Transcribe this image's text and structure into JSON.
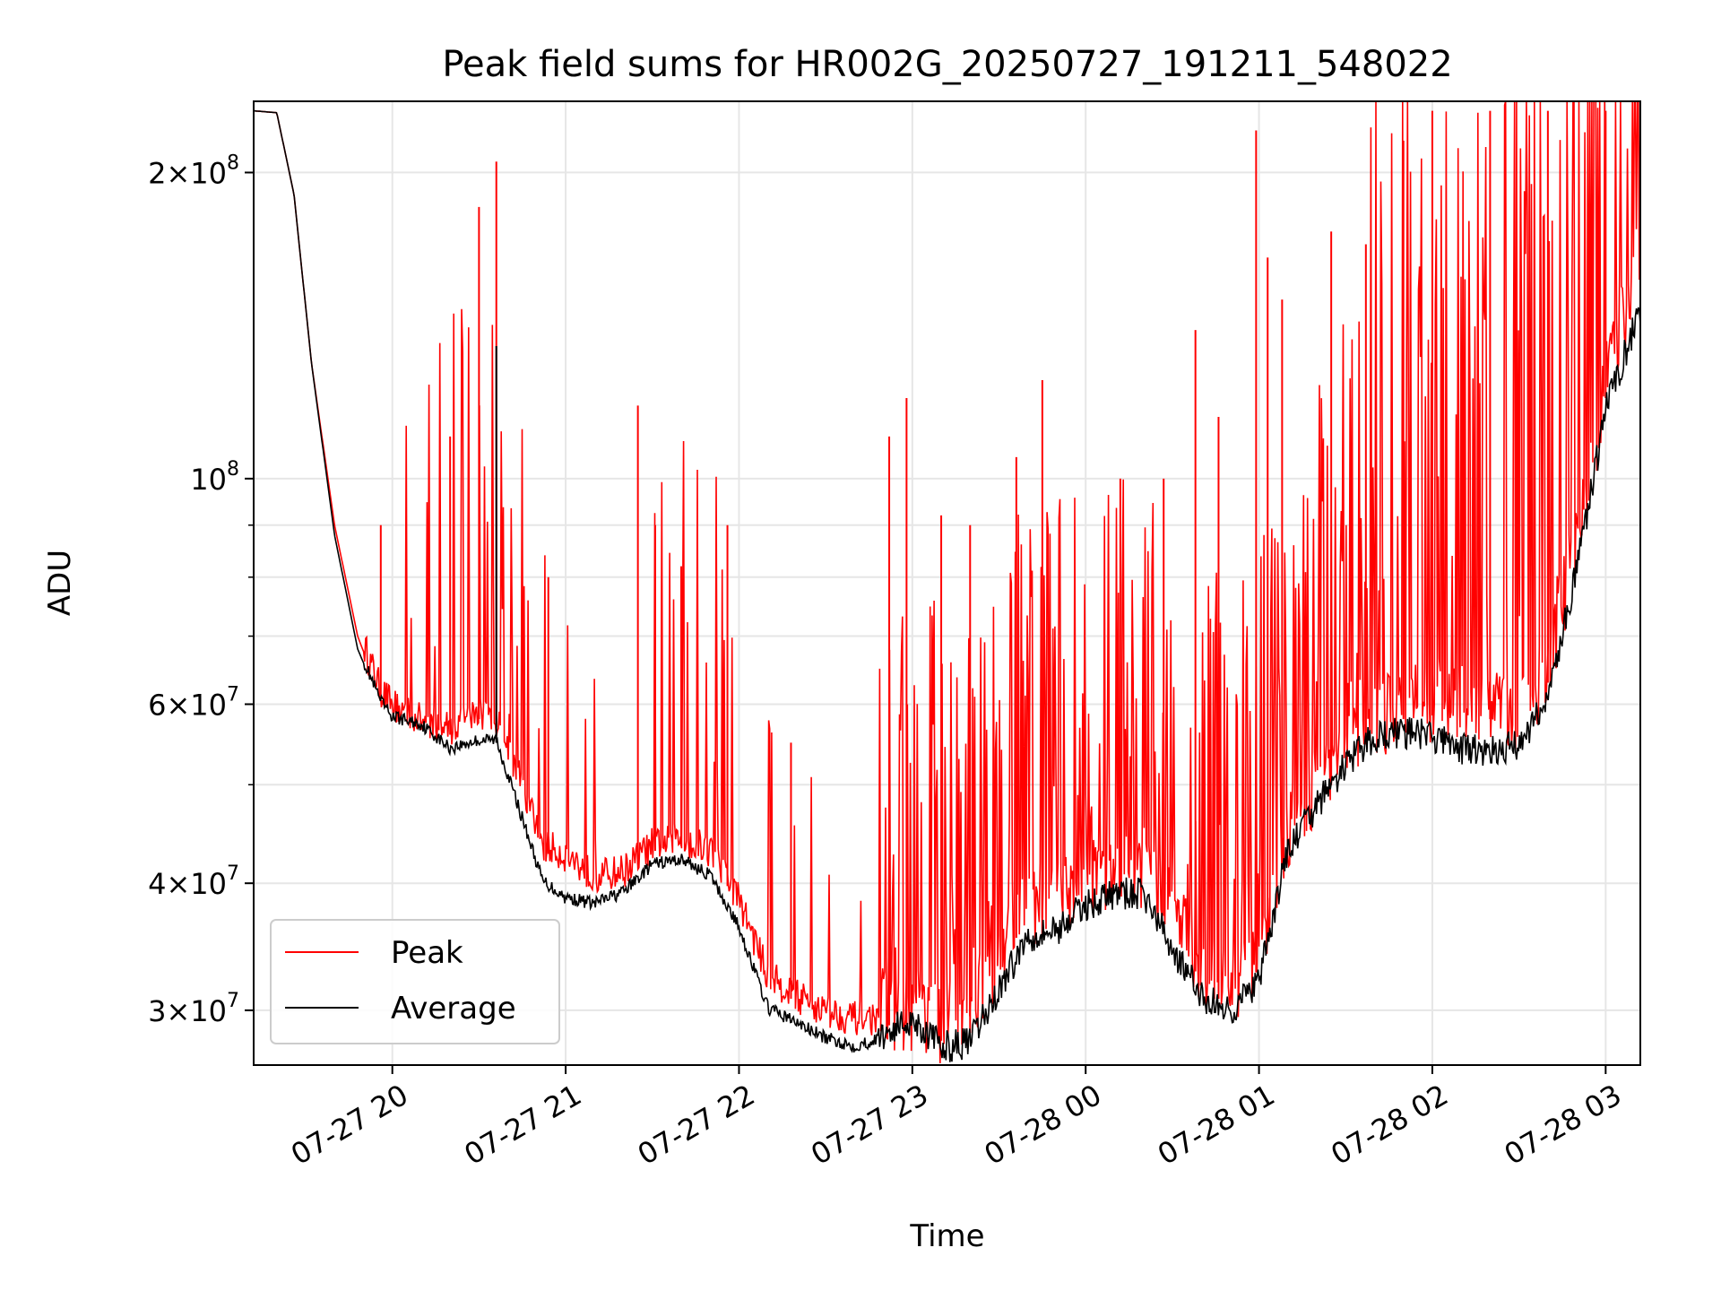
{
  "chart_data": {
    "type": "line",
    "title": "Peak field sums for HR002G_20250727_191211_548022",
    "xlabel": "Time",
    "ylabel": "ADU",
    "yscale": "log",
    "ylim": [
      26500000,
      235000000
    ],
    "xlim": [
      "07-27 19:12",
      "07-28 03:12"
    ],
    "grid": true,
    "legend_position": "lower-left",
    "x_ticks": [
      "07-27 20",
      "07-27 21",
      "07-27 22",
      "07-27 23",
      "07-28 00",
      "07-28 01",
      "07-28 02",
      "07-28 03"
    ],
    "y_ticks": [
      {
        "value": 30000000,
        "base": "3",
        "exp": "7"
      },
      {
        "value": 40000000,
        "base": "4",
        "exp": "7"
      },
      {
        "value": 60000000,
        "base": "6",
        "exp": "7"
      },
      {
        "value": 100000000,
        "base": "",
        "exp": "8"
      },
      {
        "value": 200000000,
        "base": "2",
        "exp": "8"
      }
    ],
    "series": [
      {
        "name": "Peak",
        "color": "#ff0000",
        "x": [
          "07-27 19:12",
          "07-27 19:20",
          "07-27 19:26",
          "07-27 19:32",
          "07-27 19:40",
          "07-27 19:48",
          "07-27 19:56",
          "07-27 20:00",
          "07-27 20:10",
          "07-27 20:20",
          "07-27 20:30",
          "07-27 20:36",
          "07-27 20:44",
          "07-27 20:52",
          "07-27 21:00",
          "07-27 21:10",
          "07-27 21:20",
          "07-27 21:30",
          "07-27 21:40",
          "07-27 21:50",
          "07-27 22:00",
          "07-27 22:10",
          "07-27 22:20",
          "07-27 22:30",
          "07-27 22:40",
          "07-27 22:50",
          "07-27 23:00",
          "07-27 23:10",
          "07-27 23:20",
          "07-27 23:30",
          "07-27 23:40",
          "07-27 23:50",
          "07-28 00:00",
          "07-28 00:10",
          "07-28 00:20",
          "07-28 00:30",
          "07-28 00:40",
          "07-28 00:50",
          "07-28 01:00",
          "07-28 01:10",
          "07-28 01:20",
          "07-28 01:30",
          "07-28 01:40",
          "07-28 01:50",
          "07-28 02:00",
          "07-28 02:10",
          "07-28 02:20",
          "07-28 02:30",
          "07-28 02:40",
          "07-28 02:50",
          "07-28 03:00",
          "07-28 03:12"
        ],
        "values": [
          230000000,
          229000000,
          190000000,
          130000000,
          90000000,
          70000000,
          61000000,
          59000000,
          57000000,
          56000000,
          58000000,
          57000000,
          50000000,
          43000000,
          42000000,
          40000000,
          40500000,
          43000000,
          43500000,
          42500000,
          38000000,
          32000000,
          30500000,
          29500000,
          29000000,
          29000000,
          29000000,
          28000000,
          28500000,
          33000000,
          37000000,
          37000000,
          39000000,
          39500000,
          40000000,
          36000000,
          32000000,
          30000000,
          33000000,
          44000000,
          48000000,
          52000000,
          56000000,
          58000000,
          58500000,
          58000000,
          58000000,
          57000000,
          63000000,
          85000000,
          120000000,
          160000000
        ],
        "spikes": [
          {
            "x": "07-27 19:56",
            "y": 90000000
          },
          {
            "x": "07-27 20:20",
            "y": 110000000
          },
          {
            "x": "07-27 20:30",
            "y": 185000000
          },
          {
            "x": "07-27 20:36",
            "y": 205000000
          },
          {
            "x": "07-27 20:54",
            "y": 80000000
          },
          {
            "x": "07-27 21:25",
            "y": 118000000
          },
          {
            "x": "07-27 21:31",
            "y": 90000000
          },
          {
            "x": "07-27 21:40",
            "y": 82000000
          },
          {
            "x": "07-27 21:56",
            "y": 90000000
          },
          {
            "x": "07-27 22:18",
            "y": 55000000
          },
          {
            "x": "07-27 22:52",
            "y": 110000000
          },
          {
            "x": "07-27 22:58",
            "y": 120000000
          },
          {
            "x": "07-27 23:10",
            "y": 92000000
          },
          {
            "x": "07-27 23:20",
            "y": 90000000
          },
          {
            "x": "07-27 23:36",
            "y": 105000000
          },
          {
            "x": "07-27 23:45",
            "y": 125000000
          },
          {
            "x": "07-28 00:12",
            "y": 100000000
          },
          {
            "x": "07-28 00:27",
            "y": 100000000
          },
          {
            "x": "07-28 00:38",
            "y": 140000000
          },
          {
            "x": "07-28 00:46",
            "y": 115000000
          },
          {
            "x": "07-28 00:59",
            "y": 220000000
          },
          {
            "x": "07-28 01:03",
            "y": 165000000
          },
          {
            "x": "07-28 01:08",
            "y": 150000000
          },
          {
            "x": "07-28 01:25",
            "y": 175000000
          },
          {
            "x": "07-28 01:37",
            "y": 170000000
          },
          {
            "x": "07-28 01:50",
            "y": 215000000
          },
          {
            "x": "07-28 02:00",
            "y": 230000000
          },
          {
            "x": "07-28 02:20",
            "y": 230000000
          },
          {
            "x": "07-28 02:40",
            "y": 230000000
          },
          {
            "x": "07-28 03:00",
            "y": 230000000
          }
        ]
      },
      {
        "name": "Average",
        "color": "#000000",
        "x": [
          "07-27 19:12",
          "07-27 19:20",
          "07-27 19:26",
          "07-27 19:32",
          "07-27 19:40",
          "07-27 19:48",
          "07-27 19:56",
          "07-27 20:00",
          "07-27 20:10",
          "07-27 20:20",
          "07-27 20:30",
          "07-27 20:36",
          "07-27 20:44",
          "07-27 20:52",
          "07-27 21:00",
          "07-27 21:10",
          "07-27 21:20",
          "07-27 21:30",
          "07-27 21:40",
          "07-27 21:50",
          "07-27 22:00",
          "07-27 22:10",
          "07-27 22:20",
          "07-27 22:30",
          "07-27 22:40",
          "07-27 22:50",
          "07-27 23:00",
          "07-27 23:10",
          "07-27 23:20",
          "07-27 23:30",
          "07-27 23:40",
          "07-27 23:50",
          "07-28 00:00",
          "07-28 00:10",
          "07-28 00:20",
          "07-28 00:30",
          "07-28 00:40",
          "07-28 00:50",
          "07-28 01:00",
          "07-28 01:10",
          "07-28 01:20",
          "07-28 01:30",
          "07-28 01:40",
          "07-28 01:50",
          "07-28 02:00",
          "07-28 02:10",
          "07-28 02:20",
          "07-28 02:30",
          "07-28 02:40",
          "07-28 02:50",
          "07-28 03:00",
          "07-28 03:12"
        ],
        "values": [
          230000000,
          229000000,
          190000000,
          130000000,
          88000000,
          68000000,
          60000000,
          58000000,
          57000000,
          54000000,
          55000000,
          55000000,
          47000000,
          40000000,
          38500000,
          38000000,
          39000000,
          41500000,
          42000000,
          40500000,
          36000000,
          30000000,
          29000000,
          28000000,
          27500000,
          28000000,
          29000000,
          27200000,
          27500000,
          31000000,
          35000000,
          35500000,
          37500000,
          38500000,
          38500000,
          34000000,
          30500000,
          29500000,
          31500000,
          42500000,
          47000000,
          51500000,
          55000000,
          55500000,
          55000000,
          53500000,
          53000000,
          54000000,
          60000000,
          80000000,
          115000000,
          145000000
        ],
        "spikes": [
          {
            "x": "07-27 20:36",
            "y": 135000000
          }
        ]
      }
    ]
  }
}
